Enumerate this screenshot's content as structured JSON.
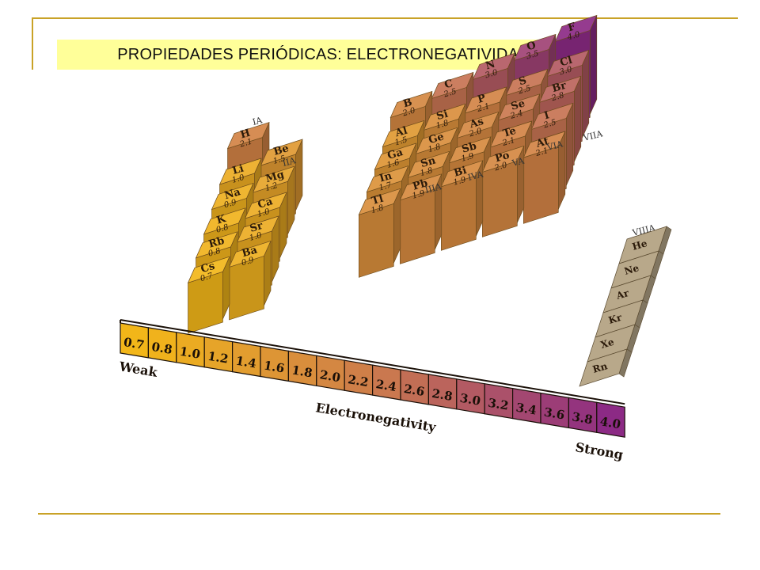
{
  "slide": {
    "title": "PROPIEDADES PERIÓDICAS: ELECTRONEGATIVIDAD"
  },
  "colors": {
    "rule": "#c9a227",
    "title_bg": "#ffff99",
    "low": "#f2b619",
    "mid": "#cc7a4d",
    "high": "#8c2a85",
    "noble": "#b8a88a"
  },
  "groups": [
    "IA",
    "IIA",
    "IIIA",
    "IVA",
    "VA",
    "VIA",
    "VIIA",
    "VIIIA"
  ],
  "elements": {
    "IA": [
      [
        "H",
        "2.1"
      ],
      [
        "Li",
        "1.0"
      ],
      [
        "Na",
        "0.9"
      ],
      [
        "K",
        "0.8"
      ],
      [
        "Rb",
        "0.8"
      ],
      [
        "Cs",
        "0.7"
      ]
    ],
    "IIA": [
      [
        "Be",
        "1.5"
      ],
      [
        "Mg",
        "1.2"
      ],
      [
        "Ca",
        "1.0"
      ],
      [
        "Sr",
        "1.0"
      ],
      [
        "Ba",
        "0.9"
      ]
    ],
    "IIIA": [
      [
        "B",
        "2.0"
      ],
      [
        "Al",
        "1.5"
      ],
      [
        "Ga",
        "1.6"
      ],
      [
        "In",
        "1.7"
      ],
      [
        "Tl",
        "1.8"
      ]
    ],
    "IVA": [
      [
        "C",
        "2.5"
      ],
      [
        "Si",
        "1.8"
      ],
      [
        "Ge",
        "1.8"
      ],
      [
        "Sn",
        "1.8"
      ],
      [
        "Pb",
        "1.9"
      ]
    ],
    "VA": [
      [
        "N",
        "3.0"
      ],
      [
        "P",
        "2.1"
      ],
      [
        "As",
        "2.0"
      ],
      [
        "Sb",
        "1.9"
      ],
      [
        "Bi",
        "1.9"
      ]
    ],
    "VIA": [
      [
        "O",
        "3.5"
      ],
      [
        "S",
        "2.5"
      ],
      [
        "Se",
        "2.4"
      ],
      [
        "Te",
        "2.1"
      ],
      [
        "Po",
        "2.0"
      ]
    ],
    "VIIA": [
      [
        "F",
        "4.0"
      ],
      [
        "Cl",
        "3.0"
      ],
      [
        "Br",
        "2.8"
      ],
      [
        "I",
        "2.5"
      ],
      [
        "At",
        "2.1"
      ]
    ],
    "VIIIA": [
      "He",
      "Ne",
      "Ar",
      "Kr",
      "Xe",
      "Rn"
    ]
  },
  "scale": {
    "values": [
      "0.7",
      "0.8",
      "1.0",
      "1.2",
      "1.4",
      "1.6",
      "1.8",
      "2.0",
      "2.2",
      "2.4",
      "2.6",
      "2.8",
      "3.0",
      "3.2",
      "3.4",
      "3.6",
      "3.8",
      "4.0"
    ],
    "low_label": "Weak",
    "high_label": "Strong",
    "axis_label": "Electronegativity"
  }
}
